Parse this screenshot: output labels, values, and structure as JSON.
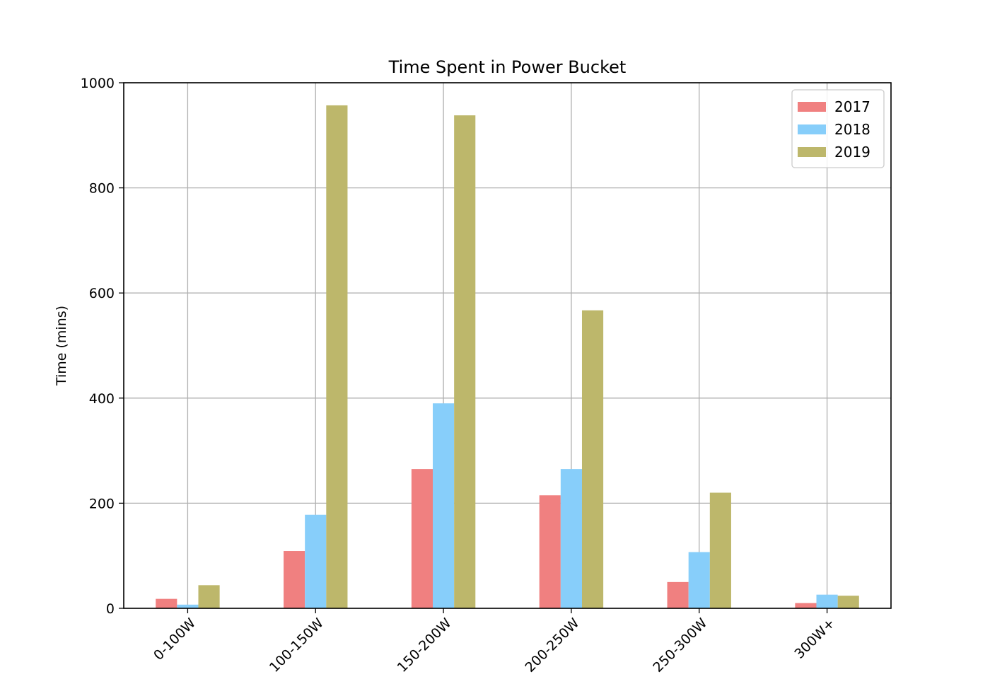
{
  "chart_data": {
    "type": "bar",
    "title": "Time Spent in Power Bucket",
    "xlabel": "",
    "ylabel": "Time (mins)",
    "categories": [
      "0-100W",
      "100-150W",
      "150-200W",
      "200-250W",
      "250-300W",
      "300W+"
    ],
    "series": [
      {
        "name": "2017",
        "color": "#f08080",
        "values": [
          18,
          109,
          265,
          215,
          50,
          10
        ]
      },
      {
        "name": "2018",
        "color": "#87cefa",
        "values": [
          7,
          178,
          390,
          265,
          107,
          26
        ]
      },
      {
        "name": "2019",
        "color": "#bdb76b",
        "values": [
          44,
          957,
          938,
          567,
          220,
          24
        ]
      }
    ],
    "ylim": [
      0,
      1000
    ],
    "yticks": [
      0,
      200,
      400,
      600,
      800,
      1000
    ],
    "grid": true,
    "legend_position": "top-right",
    "xtick_rotation": -45
  }
}
